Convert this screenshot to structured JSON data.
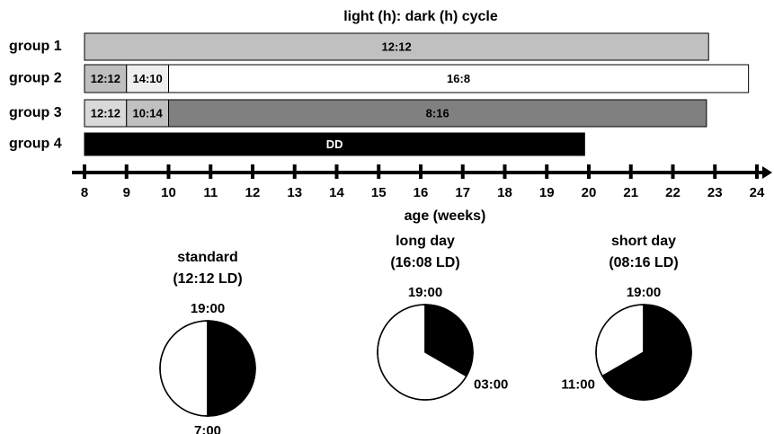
{
  "title": "light (h): dark (h) cycle",
  "x_axis": {
    "label": "age (weeks)",
    "xlim": [
      8,
      24
    ],
    "ticks": [
      8,
      9,
      10,
      11,
      12,
      13,
      14,
      15,
      16,
      17,
      18,
      19,
      20,
      21,
      22,
      23,
      24
    ]
  },
  "groups": [
    {
      "label": "group 1",
      "segments": [
        {
          "label": "12:12",
          "start": 8,
          "end": 22.85,
          "color": "#c0c0c0"
        }
      ]
    },
    {
      "label": "group 2",
      "segments": [
        {
          "label": "12:12",
          "start": 8,
          "end": 9,
          "color": "#bfbfbf"
        },
        {
          "label": "14:10",
          "start": 9,
          "end": 10,
          "color": "#efefef"
        },
        {
          "label": "16:8",
          "start": 10,
          "end": 23.8,
          "color": "#ffffff"
        }
      ]
    },
    {
      "label": "group 3",
      "segments": [
        {
          "label": "12:12",
          "start": 8,
          "end": 9,
          "color": "#d9d9d9"
        },
        {
          "label": "10:14",
          "start": 9,
          "end": 10,
          "color": "#c0c0c0"
        },
        {
          "label": "8:16",
          "start": 10,
          "end": 22.8,
          "color": "#808080"
        }
      ]
    },
    {
      "label": "group 4",
      "segments": [
        {
          "label": "DD",
          "start": 8,
          "end": 19.9,
          "color": "#000000"
        }
      ]
    }
  ],
  "pies": [
    {
      "title": "standard",
      "subtitle": "(12:12 LD)",
      "start_label": "19:00",
      "end_label": "7:00",
      "dark_hours": 12,
      "light_hours": 12
    },
    {
      "title": "long day",
      "subtitle": "(16:08 LD)",
      "start_label": "19:00",
      "end_label": "03:00",
      "dark_hours": 8,
      "light_hours": 16
    },
    {
      "title": "short day",
      "subtitle": "(08:16 LD)",
      "start_label": "19:00",
      "end_label": "11:00",
      "dark_hours": 16,
      "light_hours": 8
    }
  ]
}
